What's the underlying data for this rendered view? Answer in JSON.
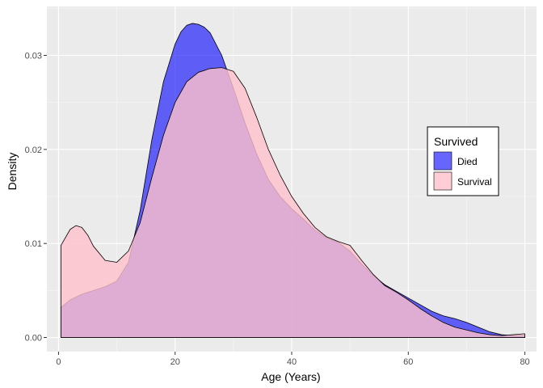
{
  "chart_data": {
    "type": "area",
    "title": "",
    "xlabel": "Age (Years)",
    "ylabel": "Density",
    "xlim": [
      -2,
      82
    ],
    "ylim": [
      -0.0015,
      0.0352
    ],
    "x_ticks": [
      0,
      20,
      40,
      60,
      80
    ],
    "x_tick_labels": [
      "0",
      "20",
      "40",
      "60",
      "80"
    ],
    "y_ticks": [
      0.0,
      0.01,
      0.02,
      0.03
    ],
    "y_tick_labels": [
      "0.00",
      "0.01",
      "0.02",
      "0.03"
    ],
    "grid": true,
    "legend": {
      "title": "Survived",
      "placement": "right"
    },
    "series": [
      {
        "name": "Died",
        "color": "#0000ff",
        "opacity": 0.6,
        "x": [
          0.42,
          2,
          4,
          6,
          8,
          10,
          12,
          14,
          16,
          18,
          20,
          21,
          22,
          23,
          24,
          25,
          26,
          28,
          30,
          32,
          34,
          36,
          38,
          40,
          42,
          44,
          46,
          48,
          50,
          52,
          54,
          56,
          58,
          60,
          62,
          64,
          66,
          68,
          70,
          72,
          74,
          76,
          78,
          80
        ],
        "y": [
          0.0032,
          0.004,
          0.0046,
          0.005,
          0.0054,
          0.006,
          0.008,
          0.0135,
          0.021,
          0.0272,
          0.0312,
          0.0325,
          0.0332,
          0.0334,
          0.0333,
          0.033,
          0.0324,
          0.03,
          0.0265,
          0.0228,
          0.0195,
          0.0168,
          0.015,
          0.0137,
          0.0126,
          0.0114,
          0.0106,
          0.0101,
          0.0092,
          0.0078,
          0.0066,
          0.0056,
          0.0049,
          0.0042,
          0.0035,
          0.0028,
          0.0023,
          0.002,
          0.0016,
          0.0011,
          0.0006,
          0.0003,
          0.0002,
          0.0002
        ]
      },
      {
        "name": "Survival",
        "color": "#ffc0cb",
        "opacity": 0.8,
        "x": [
          0.42,
          2,
          3,
          4,
          5,
          6,
          8,
          10,
          12,
          14,
          16,
          18,
          20,
          22,
          24,
          26,
          28,
          30,
          32,
          34,
          36,
          38,
          40,
          42,
          44,
          46,
          48,
          50,
          52,
          54,
          56,
          58,
          60,
          62,
          64,
          66,
          68,
          70,
          72,
          74,
          76,
          78,
          80
        ],
        "y": [
          0.0098,
          0.0115,
          0.0119,
          0.0117,
          0.0109,
          0.0097,
          0.0082,
          0.008,
          0.0092,
          0.0122,
          0.017,
          0.0215,
          0.025,
          0.0272,
          0.0282,
          0.0286,
          0.0287,
          0.0283,
          0.0265,
          0.0234,
          0.02,
          0.0173,
          0.015,
          0.0132,
          0.0117,
          0.0107,
          0.0102,
          0.0098,
          0.0082,
          0.0067,
          0.0055,
          0.0048,
          0.004,
          0.0031,
          0.0023,
          0.0016,
          0.0011,
          0.0008,
          0.0005,
          0.0003,
          0.0002,
          0.0003,
          0.0004
        ]
      }
    ]
  }
}
